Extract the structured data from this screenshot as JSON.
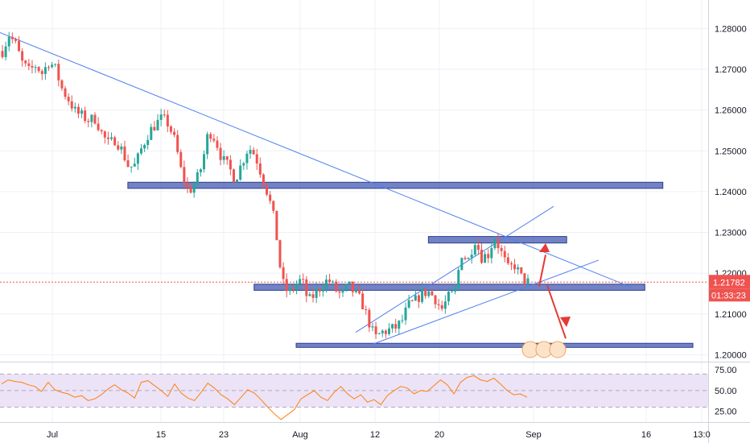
{
  "chart_data": [
    {
      "type": "candlestick",
      "title": "",
      "x_tick_labels": [
        "Jul",
        "15",
        "23",
        "Aug",
        "12",
        "20",
        "Sep",
        "16",
        "13:0"
      ],
      "y_tick_labels": [
        "1.28000",
        "1.27000",
        "1.26000",
        "1.25000",
        "1.24000",
        "1.23000",
        "1.22000",
        "1.21000",
        "1.20000"
      ],
      "ylim": [
        1.1985,
        1.287
      ],
      "last_price": "1.21782",
      "countdown": "01:33:23",
      "grid": true,
      "colors": {
        "up": "#26a69a",
        "down": "#ef5350",
        "zone": "#4a5fb5",
        "trend": "#4f7ff0",
        "arrow": "#e53935",
        "last_line": "#ef5350"
      },
      "close_path": [
        [
          0,
          1.2745
        ],
        [
          1,
          1.2785
        ],
        [
          2,
          1.276
        ],
        [
          3,
          1.2715
        ],
        [
          4,
          1.2695
        ],
        [
          5,
          1.271
        ],
        [
          6,
          1.269
        ],
        [
          7,
          1.272
        ],
        [
          8,
          1.27
        ],
        [
          9,
          1.265
        ],
        [
          10,
          1.2625
        ],
        [
          11,
          1.2595
        ],
        [
          12,
          1.2585
        ],
        [
          13,
          1.2575
        ],
        [
          14,
          1.258
        ],
        [
          15,
          1.254
        ],
        [
          16,
          1.2515
        ],
        [
          17,
          1.253
        ],
        [
          18,
          1.25
        ],
        [
          19,
          1.246
        ],
        [
          20,
          1.2465
        ],
        [
          21,
          1.251
        ],
        [
          22,
          1.2545
        ],
        [
          23,
          1.2565
        ],
        [
          24,
          1.258
        ],
        [
          25,
          1.2565
        ],
        [
          26,
          1.252
        ],
        [
          27,
          1.244
        ],
        [
          28,
          1.24
        ],
        [
          29,
          1.242
        ],
        [
          30,
          1.2465
        ],
        [
          31,
          1.255
        ],
        [
          32,
          1.253
        ],
        [
          33,
          1.248
        ],
        [
          34,
          1.246
        ],
        [
          35,
          1.243
        ],
        [
          36,
          1.247
        ],
        [
          37,
          1.251
        ],
        [
          38,
          1.249
        ],
        [
          39,
          1.244
        ],
        [
          40,
          1.239
        ],
        [
          41,
          1.232
        ],
        [
          42,
          1.218
        ],
        [
          43,
          1.215
        ],
        [
          44,
          1.217
        ],
        [
          45,
          1.2185
        ],
        [
          46,
          1.213
        ],
        [
          47,
          1.215
        ],
        [
          48,
          1.217
        ],
        [
          49,
          1.2185
        ],
        [
          50,
          1.216
        ],
        [
          51,
          1.2145
        ],
        [
          52,
          1.217
        ],
        [
          53,
          1.215
        ],
        [
          54,
          1.213
        ],
        [
          55,
          1.2085
        ],
        [
          56,
          1.204
        ],
        [
          57,
          1.2055
        ],
        [
          58,
          1.206
        ],
        [
          59,
          1.2065
        ],
        [
          60,
          1.208
        ],
        [
          61,
          1.212
        ],
        [
          62,
          1.213
        ],
        [
          63,
          1.215
        ],
        [
          64,
          1.2155
        ],
        [
          65,
          1.214
        ],
        [
          66,
          1.211
        ],
        [
          67,
          1.214
        ],
        [
          68,
          1.215
        ],
        [
          69,
          1.225
        ],
        [
          70,
          1.223
        ],
        [
          71,
          1.2285
        ],
        [
          72,
          1.224
        ],
        [
          73,
          1.2245
        ],
        [
          74,
          1.229
        ],
        [
          75,
          1.225
        ],
        [
          76,
          1.221
        ],
        [
          77,
          1.222
        ],
        [
          78,
          1.219
        ],
        [
          79,
          1.2178
        ]
      ],
      "zones": [
        {
          "label": "resistance-1",
          "y": [
            1.2408,
            1.2423
          ],
          "x": [
            10.5,
            55
          ]
        },
        {
          "label": "resistance-2",
          "y": [
            1.2274,
            1.229
          ],
          "x": [
            35.5,
            47
          ]
        },
        {
          "label": "support-1",
          "y": [
            1.2158,
            1.2173
          ],
          "x": [
            21,
            53.5
          ]
        },
        {
          "label": "support-2",
          "y": [
            1.2018,
            1.2028
          ],
          "x": [
            24.5,
            57.5
          ]
        }
      ]
    },
    {
      "type": "line",
      "title": "",
      "y_tick_labels": [
        "75.00",
        "50.00",
        "25.00"
      ],
      "ylim": [
        12,
        83
      ],
      "band": [
        30,
        70
      ],
      "colors": {
        "line": "#ff7f0e",
        "band": "#ece3f6"
      },
      "series": [
        {
          "values": [
            58,
            63,
            61,
            60,
            57,
            55,
            49,
            60,
            51,
            48,
            46,
            42,
            44,
            38,
            40,
            45,
            52,
            57,
            51,
            47,
            41,
            60,
            62,
            56,
            50,
            43,
            58,
            47,
            41,
            38,
            48,
            59,
            53,
            45,
            40,
            33,
            42,
            51,
            47,
            39,
            30,
            22,
            15,
            21,
            27,
            40,
            45,
            50,
            42,
            38,
            48,
            55,
            46,
            40,
            45,
            36,
            39,
            33,
            44,
            50,
            55,
            53,
            46,
            50,
            49,
            56,
            63,
            57,
            46,
            60,
            66,
            68,
            63,
            61,
            65,
            58,
            50,
            45,
            46,
            42
          ]
        }
      ]
    }
  ]
}
